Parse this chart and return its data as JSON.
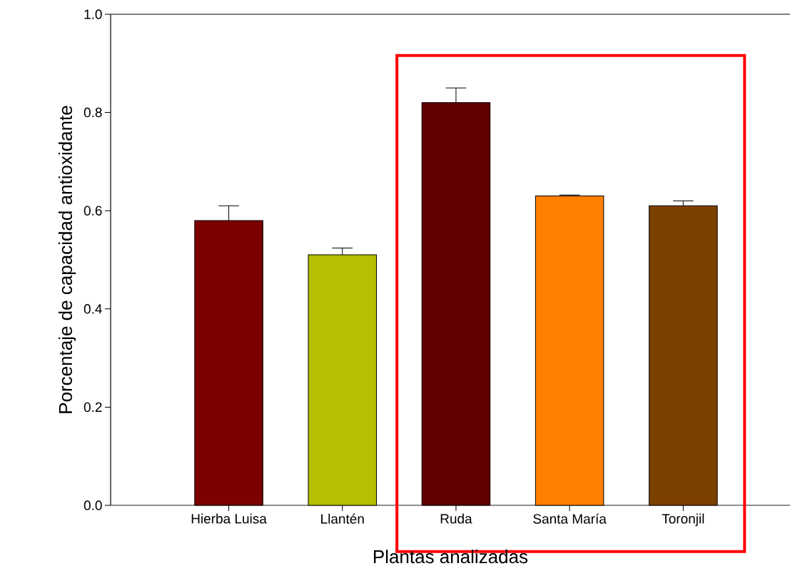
{
  "chart_data": {
    "type": "bar",
    "xlabel": "Plantas analizadas",
    "ylabel": "Porcentaje de capacidad antioxidante",
    "categories": [
      "Hierba Luisa",
      "Llantén",
      "Ruda",
      "Santa María",
      "Toronjil"
    ],
    "values": [
      0.58,
      0.51,
      0.82,
      0.63,
      0.61
    ],
    "colors": [
      "#7b0000",
      "#b5c000",
      "#600000",
      "#ff8000",
      "#7b4000"
    ],
    "errors": [
      [
        0.58,
        0.61
      ],
      [
        0.51,
        0.524
      ],
      [
        0.82,
        0.85
      ],
      [
        0.63,
        0.632
      ],
      [
        0.61,
        0.62
      ]
    ],
    "ylim": [
      0,
      1.0
    ],
    "yticks": [
      {
        "value": 0,
        "label": "0.0"
      },
      0.2,
      0.4,
      0.6,
      0.8,
      {
        "value": 1.0,
        "label": "1.0"
      }
    ],
    "grid": false
  }
}
